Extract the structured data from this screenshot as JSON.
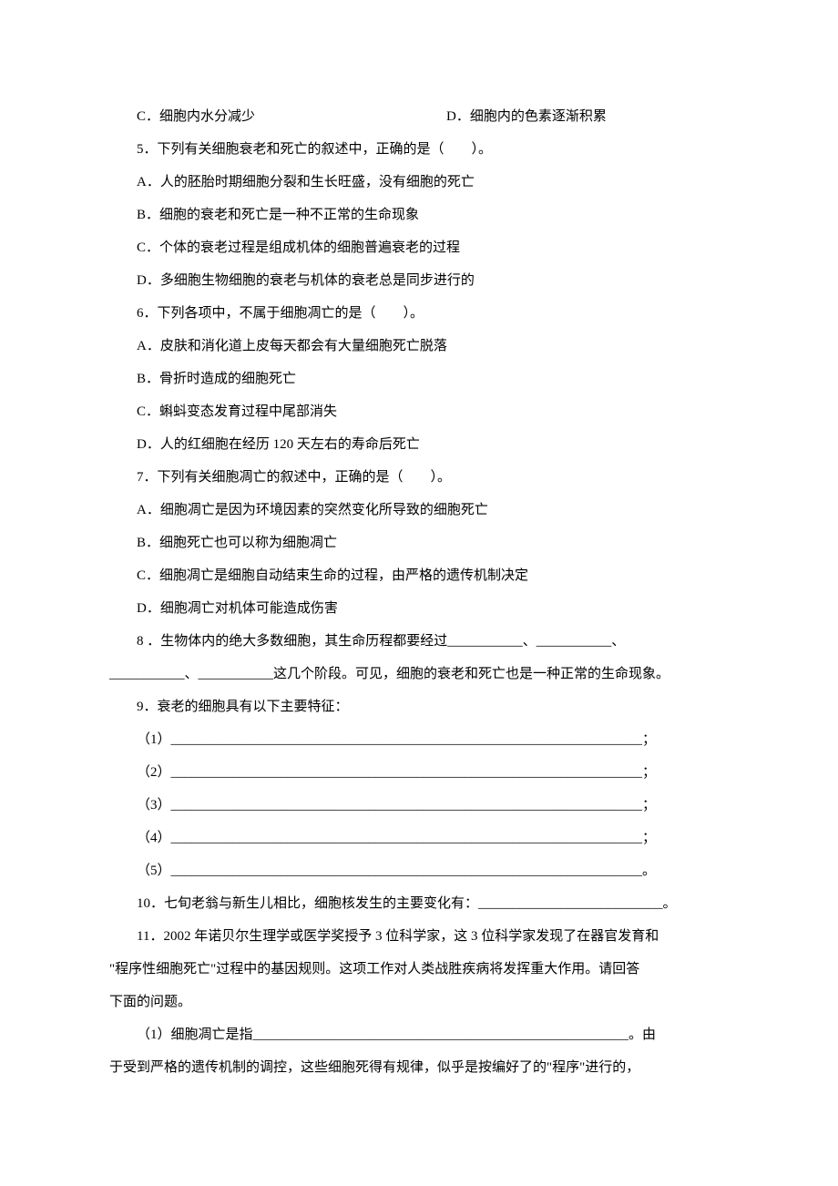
{
  "font": {
    "body_family": "SimSun",
    "latin_family": "Arial",
    "fontsize": 15,
    "line_height": 2.4,
    "color": "#000000",
    "background": "#ffffff"
  },
  "q4": {
    "c": "C．细胞内水分减少",
    "d": "D．细胞内的色素逐渐积累"
  },
  "q5": {
    "stem": "5．下列有关细胞衰老和死亡的叙述中，正确的是（　　）。",
    "a": "A．人的胚胎时期细胞分裂和生长旺盛，没有细胞的死亡",
    "b": "B．细胞的衰老和死亡是一种不正常的生命现象",
    "c": "C．个体的衰老过程是组成机体的细胞普遍衰老的过程",
    "d": "D．多细胞生物细胞的衰老与机体的衰老总是同步进行的"
  },
  "q6": {
    "stem": "6．下列各项中，不属于细胞凋亡的是（　　）。",
    "a": "A．皮肤和消化道上皮每天都会有大量细胞死亡脱落",
    "b": "B．骨折时造成的细胞死亡",
    "c": "C．蝌蚪变态发育过程中尾部消失",
    "d": "D．人的红细胞在经历 120 天左右的寿命后死亡"
  },
  "q7": {
    "stem": "7．下列有关细胞凋亡的叙述中，正确的是（　　）。",
    "a": "A．细胞凋亡是因为环境因素的突然变化所导致的细胞死亡",
    "b": "B．细胞死亡也可以称为细胞凋亡",
    "c": "C．细胞凋亡是细胞自动结束生命的过程，由严格的遗传机制决定",
    "d": "D．细胞凋亡对机体可能造成伤害"
  },
  "q8": {
    "l1": "8 ．生物体内的绝大多数细胞，其生命历程都要经过___________、___________、",
    "l2": "___________、___________这几个阶段。可见，细胞的衰老和死亡也是一种正常的生命现象。"
  },
  "q9": {
    "stem": "9．衰老的细胞具有以下主要特征：",
    "b1": "（1）_____________________________________________________________________；",
    "b2": "（2）_____________________________________________________________________；",
    "b3": "（3）_____________________________________________________________________；",
    "b4": "（4）_____________________________________________________________________；",
    "b5": "（5）_____________________________________________________________________。"
  },
  "q10": {
    "text": "10．七旬老翁与新生儿相比，细胞核发生的主要变化有：___________________________。"
  },
  "q11": {
    "l1": "11．2002 年诺贝尔生理学或医学奖授予 3 位科学家，这 3 位科学家发现了在器官发育和",
    "l2": "\"程序性细胞死亡\"过程中的基因规则。这项工作对人类战胜疾病将发挥重大作用。请回答",
    "l3": "下面的问题。",
    "p1a": "（1）细胞凋亡是指_______________________________________________________。由",
    "p1b": "于受到严格的遗传机制的调控，这些细胞死得有规律，似乎是按编好了的\"程序\"进行的，"
  }
}
